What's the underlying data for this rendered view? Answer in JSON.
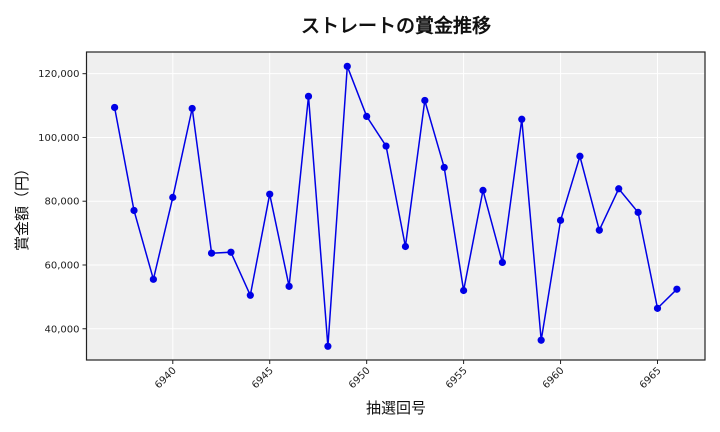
{
  "chart_data": {
    "type": "line",
    "title": "ストレートの賞金推移",
    "xlabel": "抽選回号",
    "ylabel": "賞金額（円）",
    "x": [
      6937,
      6938,
      6939,
      6940,
      6941,
      6942,
      6943,
      6944,
      6945,
      6946,
      6947,
      6948,
      6949,
      6950,
      6951,
      6952,
      6953,
      6954,
      6955,
      6956,
      6957,
      6958,
      6959,
      6960,
      6961,
      6962,
      6963,
      6964,
      6965,
      6966
    ],
    "series": [
      {
        "name": "ストレート",
        "values": [
          109400,
          77100,
          55500,
          81200,
          109100,
          63700,
          64000,
          50500,
          82200,
          53300,
          112900,
          34500,
          122300,
          106600,
          97300,
          65800,
          111600,
          90600,
          52000,
          83400,
          60800,
          105700,
          36400,
          74000,
          94100,
          70900,
          83900,
          76500,
          46400,
          52400
        ],
        "color": "#0000e6",
        "marker": "circle"
      }
    ],
    "xticks": [
      6940,
      6945,
      6950,
      6955,
      6960,
      6965
    ],
    "xtick_labels": [
      "6940",
      "6945",
      "6950",
      "6955",
      "6960",
      "6965"
    ],
    "yticks": [
      40000,
      60000,
      80000,
      100000,
      120000
    ],
    "ytick_labels": [
      "40,000",
      "60,000",
      "80,000",
      "100,000",
      "120,000"
    ],
    "xlim": [
      6935.55,
      6967.45
    ],
    "ylim": [
      30200,
      126800
    ],
    "grid": true,
    "legend": false,
    "background": "#efefef",
    "grid_color": "#ffffff"
  }
}
